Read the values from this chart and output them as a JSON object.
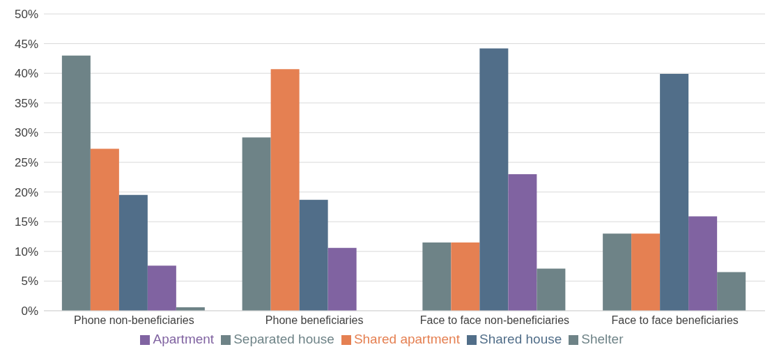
{
  "chart_data": {
    "type": "bar",
    "categories": [
      "Phone non-beneficiaries",
      "Phone  beneficiaries",
      "Face to face non-beneficiaries",
      "Face to face beneficiaries"
    ],
    "series": [
      {
        "name": "Separated house",
        "color": "#6e8387",
        "values": [
          43.0,
          29.2,
          11.5,
          13.0
        ]
      },
      {
        "name": "Shared apartment",
        "color": "#e58052",
        "values": [
          27.3,
          40.7,
          11.5,
          13.0
        ]
      },
      {
        "name": "Shared house",
        "color": "#516e89",
        "values": [
          19.5,
          18.7,
          44.2,
          39.9
        ]
      },
      {
        "name": "Apartment",
        "color": "#8063a1",
        "values": [
          7.6,
          10.6,
          23.0,
          15.9
        ]
      },
      {
        "name": "Shelter",
        "color": "#6e8387",
        "values": [
          0.6,
          0,
          7.1,
          6.5
        ]
      }
    ],
    "ylim": [
      0,
      50
    ],
    "yticks": [
      {
        "value": 0,
        "label": "0%"
      },
      {
        "value": 5,
        "label": "5%"
      },
      {
        "value": 10,
        "label": "10%"
      },
      {
        "value": 15,
        "label": "15%"
      },
      {
        "value": 20,
        "label": "20%"
      },
      {
        "value": 25,
        "label": "25%"
      },
      {
        "value": 30,
        "label": "30%"
      },
      {
        "value": 35,
        "label": "35%"
      },
      {
        "value": 40,
        "label": "40%"
      },
      {
        "value": 45,
        "label": "45%"
      },
      {
        "value": 50,
        "label": "50%"
      }
    ],
    "grid": "y",
    "legend": "bottom"
  }
}
